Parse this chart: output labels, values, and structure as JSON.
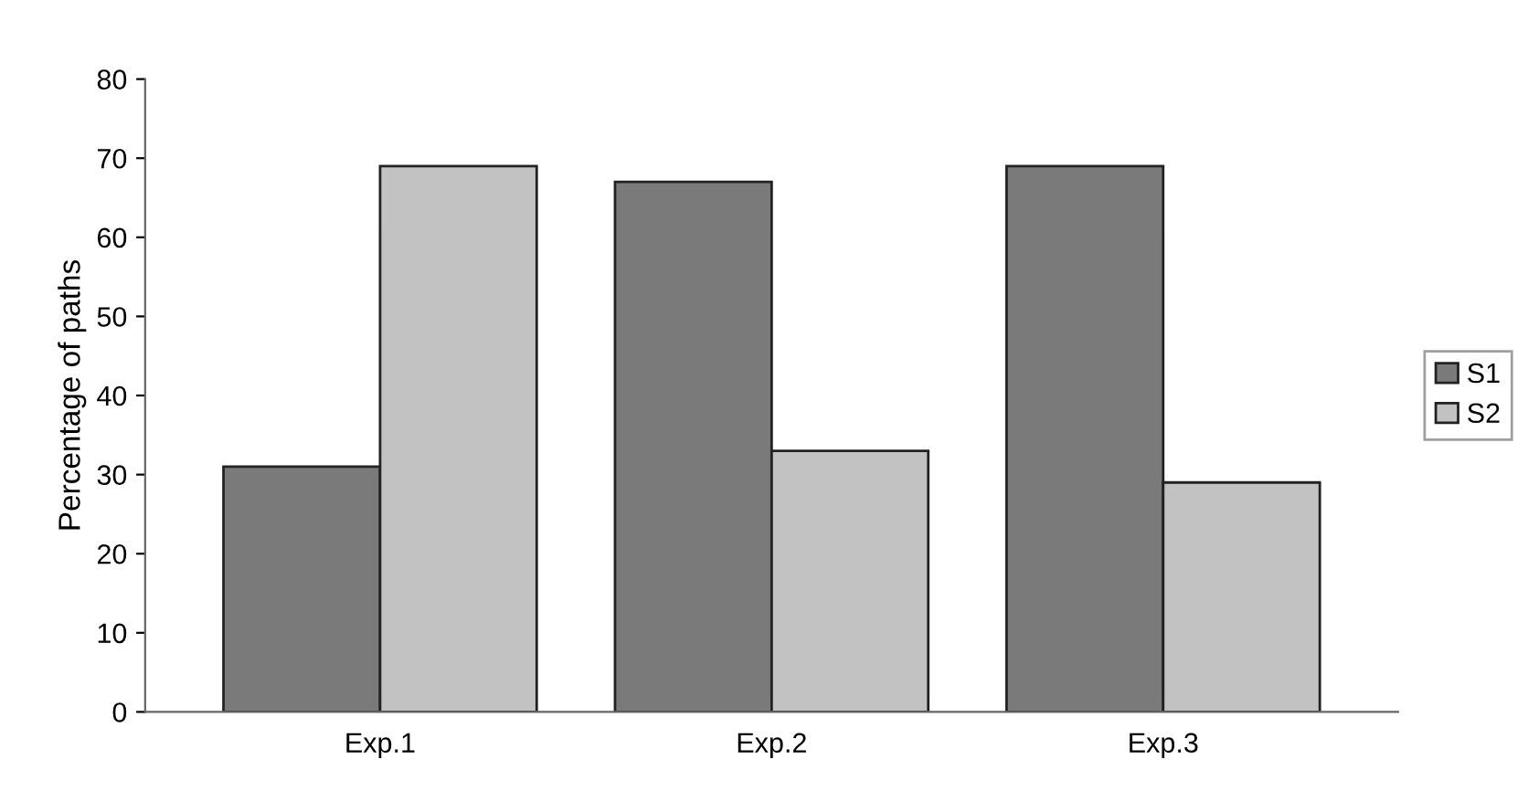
{
  "chart_data": {
    "type": "bar",
    "ylabel": "Percentage of paths",
    "categories": [
      "Exp.1",
      "Exp.2",
      "Exp.3"
    ],
    "series": [
      {
        "name": "S1",
        "color": "#7a7a7a",
        "values": [
          31,
          67,
          69
        ]
      },
      {
        "name": "S2",
        "color": "#c2c2c2",
        "values": [
          69,
          33,
          29
        ]
      }
    ],
    "ylim": [
      0,
      80
    ],
    "yticks": [
      0,
      10,
      20,
      30,
      40,
      50,
      60,
      70,
      80
    ],
    "grid": false,
    "legend": "right"
  }
}
